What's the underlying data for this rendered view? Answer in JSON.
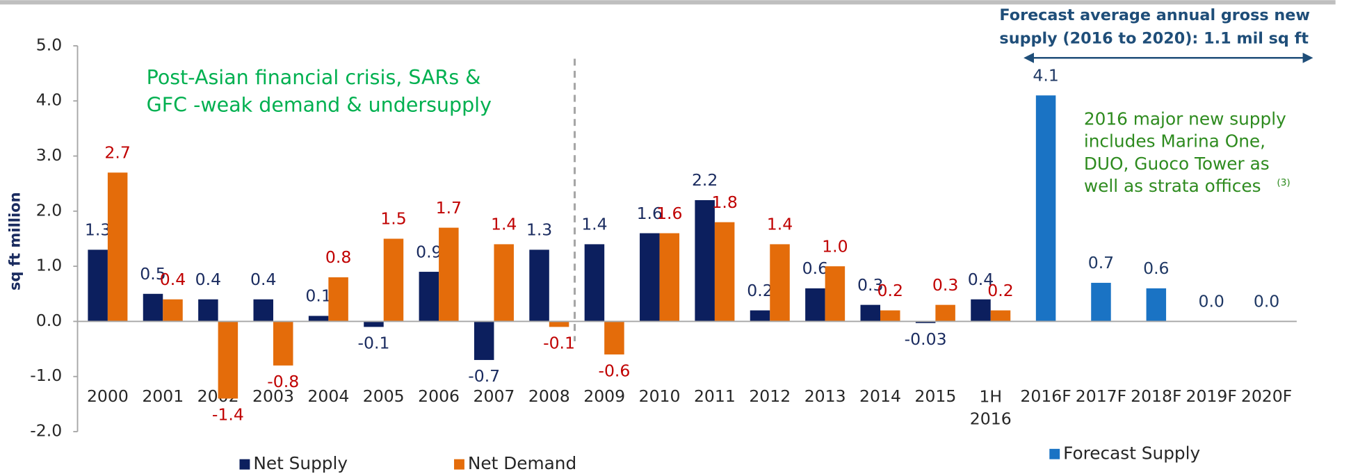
{
  "chart_data": {
    "type": "bar",
    "y_label": "sq ft million",
    "categories": [
      "2000",
      "2001",
      "2002",
      "2003",
      "2004",
      "2005",
      "2006",
      "2007",
      "2008",
      "2009",
      "2010",
      "2011",
      "2012",
      "2013",
      "2014",
      "2015",
      "1H 2016",
      "2016F",
      "2017F",
      "2018F",
      "2019F",
      "2020F"
    ],
    "series": [
      {
        "name": "Net Supply",
        "color": "#0c1f5e",
        "label_color": "#1a2b5f",
        "values": [
          1.3,
          0.5,
          0.4,
          0.4,
          0.1,
          -0.1,
          0.9,
          -0.7,
          1.3,
          1.4,
          1.6,
          2.2,
          0.2,
          0.6,
          0.3,
          -0.03,
          0.4,
          null,
          null,
          null,
          null,
          null
        ],
        "value_labels": [
          "1.3",
          "0.5",
          "0.4",
          "0.4",
          "0.1",
          "-0.1",
          "0.9",
          "-0.7",
          "1.3",
          "1.4",
          "1.6",
          "2.2",
          "0.2",
          "0.6",
          "0.3",
          "-0.03",
          "0.4",
          null,
          null,
          null,
          null,
          null
        ]
      },
      {
        "name": "Net Demand",
        "color": "#e46c0a",
        "label_color": "#c00000",
        "values": [
          2.7,
          0.4,
          -1.4,
          -0.8,
          0.8,
          1.5,
          1.7,
          1.4,
          -0.1,
          -0.6,
          1.6,
          1.8,
          1.4,
          1.0,
          0.2,
          0.3,
          0.2,
          null,
          null,
          null,
          null,
          null
        ],
        "value_labels": [
          "2.7",
          "0.4",
          "-1.4",
          "-0.8",
          "0.8",
          "1.5",
          "1.7",
          "1.4",
          "-0.1",
          "-0.6",
          "1.6",
          "1.8",
          "1.4",
          "1.0",
          "0.2",
          "0.3",
          "0.2",
          null,
          null,
          null,
          null,
          null
        ]
      },
      {
        "name": "Forecast Supply",
        "color": "#1a73c4",
        "label_color": "#1f3864",
        "values": [
          null,
          null,
          null,
          null,
          null,
          null,
          null,
          null,
          null,
          null,
          null,
          null,
          null,
          null,
          null,
          null,
          null,
          4.1,
          0.7,
          0.6,
          0.0,
          0.0
        ],
        "value_labels": [
          null,
          null,
          null,
          null,
          null,
          null,
          null,
          null,
          null,
          null,
          null,
          null,
          null,
          null,
          null,
          null,
          null,
          "4.1",
          "0.7",
          "0.6",
          "0.0",
          "0.0"
        ]
      }
    ],
    "ylim": [
      -2,
      5
    ],
    "yticks": [
      {
        "value": 5,
        "label": "5.0"
      },
      {
        "value": 4,
        "label": "4.0"
      },
      {
        "value": 3,
        "label": "3.0"
      },
      {
        "value": 2,
        "label": "2.0"
      },
      {
        "value": 1,
        "label": "1.0"
      },
      {
        "value": 0,
        "label": "0.0"
      },
      {
        "value": -1,
        "label": "-1.0"
      },
      {
        "value": -2,
        "label": "-2.0"
      }
    ],
    "annotations": {
      "period_note": [
        "Post-Asian financial crisis, SARs &",
        "GFC -weak demand & undersupply"
      ],
      "forecast_header": [
        "Forecast  average annual gross new",
        "supply (2016 to 2020): 1.1 mil sq ft"
      ],
      "supply_note": [
        "2016 major new supply",
        "includes Marina One,",
        "DUO, Guoco Tower as",
        "well as strata offices"
      ],
      "supply_note_ref": "(3)"
    }
  }
}
